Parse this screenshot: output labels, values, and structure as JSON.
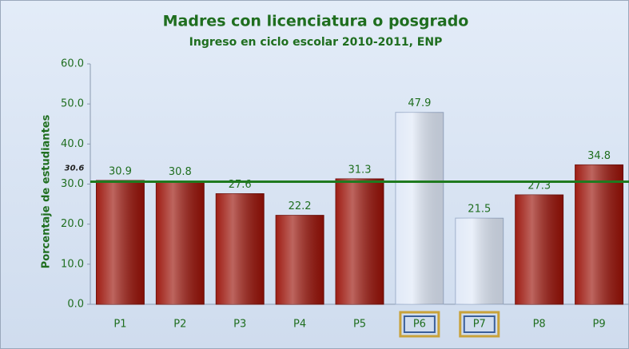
{
  "chart_data": {
    "type": "bar",
    "title": "Madres con licenciatura o posgrado",
    "subtitle": "Ingreso en ciclo escolar 2010-2011, ENP",
    "y_label": "Porcentaje de estudiantes",
    "categories": [
      "P1",
      "P2",
      "P3",
      "P4",
      "P5",
      "P6",
      "P7",
      "P8",
      "P9"
    ],
    "values": [
      30.9,
      30.8,
      27.6,
      22.2,
      31.3,
      47.9,
      21.5,
      27.3,
      34.8
    ],
    "colors": [
      "#9a1208",
      "#9a1208",
      "#9a1208",
      "#9a1208",
      "#9a1208",
      "#dfe8f7",
      "#dfe8f7",
      "#9a1208",
      "#9a1208"
    ],
    "highlight": [
      false,
      false,
      false,
      false,
      false,
      true,
      true,
      false,
      false
    ],
    "reference_line": {
      "value": 30.6,
      "color": "#1f7a1f"
    },
    "ylim": [
      0,
      60
    ],
    "yticks": [
      {
        "value": 0,
        "label": "0.0"
      },
      {
        "value": 10,
        "label": "10.0"
      },
      {
        "value": 20,
        "label": "20.0"
      },
      {
        "value": 30,
        "label": "30.0"
      },
      {
        "value": 40,
        "label": "40.0"
      },
      {
        "value": 50,
        "label": "50.0"
      },
      {
        "value": 60,
        "label": "60.0"
      }
    ],
    "grid": false
  }
}
